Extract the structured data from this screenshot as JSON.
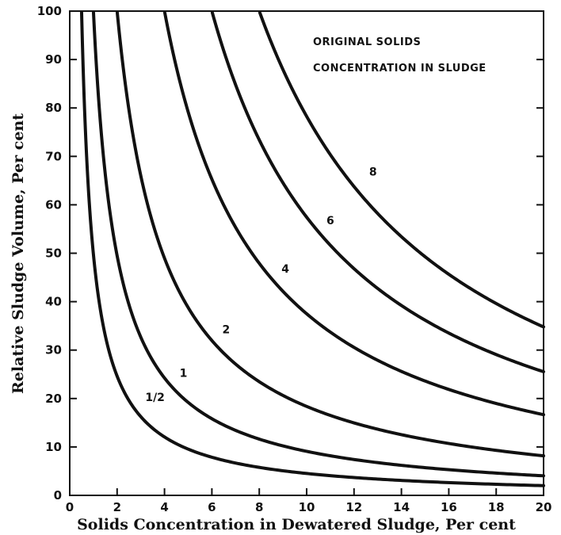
{
  "chart_data": {
    "type": "line",
    "title": "",
    "xlabel": "Solids Concentration in Dewatered Sludge, Per cent",
    "ylabel": "Relative Sludge Volume, Per cent",
    "xlim": [
      0,
      20
    ],
    "ylim": [
      0,
      100
    ],
    "x_ticks": [
      "0",
      "2",
      "4",
      "6",
      "8",
      "10",
      "12",
      "14",
      "16",
      "18",
      "20"
    ],
    "y_ticks": [
      "0",
      "10",
      "20",
      "30",
      "40",
      "50",
      "60",
      "70",
      "80",
      "90",
      "100"
    ],
    "grid": false,
    "legend": {
      "title_lines": [
        "ORIGINAL SOLIDS",
        "CONCENTRATION IN SLUDGE"
      ],
      "placement": "top-right"
    },
    "series": [
      {
        "name": "1/2",
        "original_solids": 0.5,
        "label_at": [
          3.6,
          19.5
        ]
      },
      {
        "name": "1",
        "original_solids": 1,
        "label_at": [
          4.8,
          24.5
        ]
      },
      {
        "name": "2",
        "original_solids": 2,
        "label_at": [
          6.6,
          33.5
        ]
      },
      {
        "name": "4",
        "original_solids": 4,
        "label_at": [
          9.1,
          46
        ]
      },
      {
        "name": "6",
        "original_solids": 6,
        "label_at": [
          11,
          56
        ]
      },
      {
        "name": "8",
        "original_solids": 8,
        "label_at": [
          12.8,
          66
        ]
      }
    ]
  }
}
